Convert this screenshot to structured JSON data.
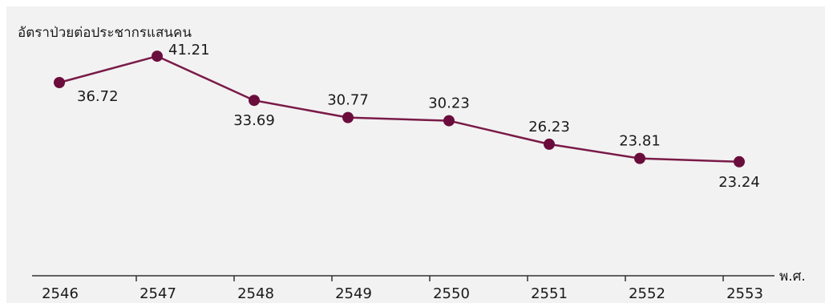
{
  "chart_data": {
    "type": "line",
    "ylabel": "อัตราป่วยต่อประชากรแสนคน",
    "xlabel": "พ.ศ.",
    "categories": [
      "2546",
      "2547",
      "2548",
      "2549",
      "2550",
      "2551",
      "2552",
      "2553"
    ],
    "series": [
      {
        "values": [
          36.72,
          41.21,
          33.69,
          30.77,
          30.23,
          26.23,
          23.81,
          23.24
        ]
      }
    ],
    "data_label_positions": [
      "below",
      "right",
      "below",
      "above",
      "above",
      "above",
      "above",
      "below"
    ],
    "ylim": [
      0,
      45
    ],
    "grid": false,
    "colors": {
      "line": "#7a1a48",
      "marker": "#6b0d3c",
      "panel_background": "#f2f2f2",
      "axis": "#333333"
    }
  }
}
